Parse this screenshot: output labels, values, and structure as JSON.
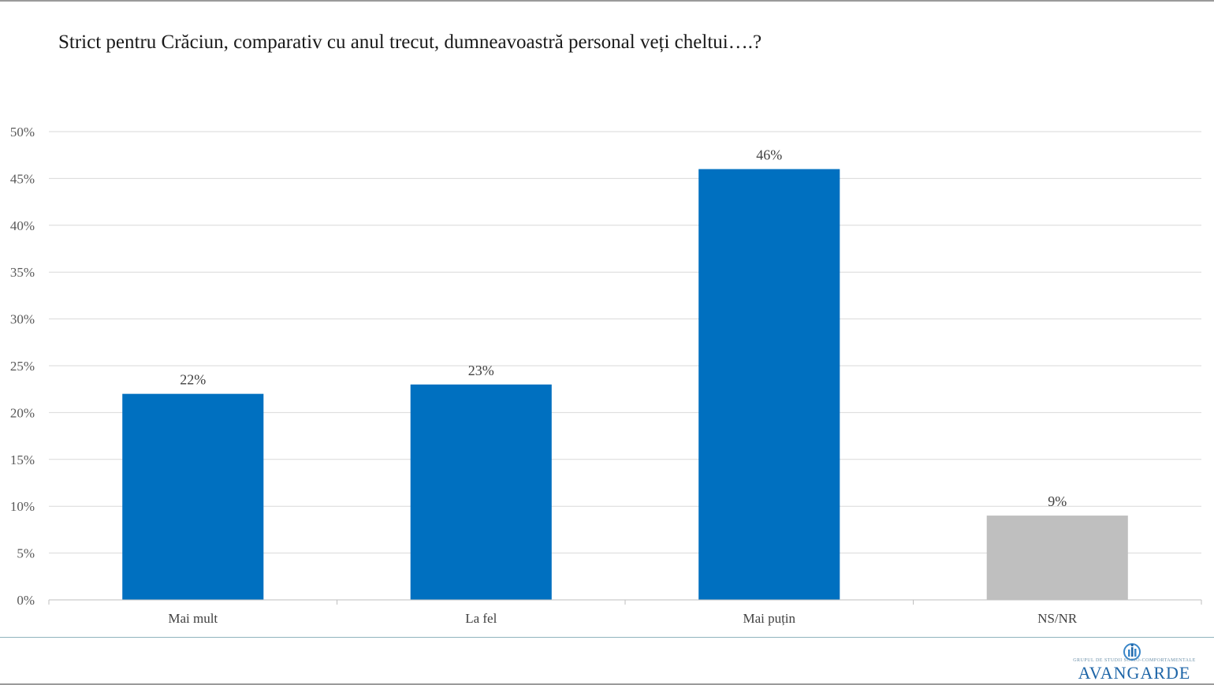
{
  "title": "Strict pentru Crăciun, comparativ cu anul trecut, dumneavoastră personal veți cheltui….?",
  "chart_data": {
    "type": "bar",
    "title": "Strict pentru Crăciun, comparativ cu anul trecut, dumneavoastră personal veți cheltui….?",
    "categories": [
      "Mai mult",
      "La fel",
      "Mai puțin",
      "NS/NR"
    ],
    "values": [
      22,
      23,
      46,
      9
    ],
    "value_labels": [
      "22%",
      "23%",
      "46%",
      "9%"
    ],
    "bar_colors": [
      "#0070c0",
      "#0070c0",
      "#0070c0",
      "#bfbfbf"
    ],
    "ylim": [
      0,
      50
    ],
    "yticks": [
      0,
      5,
      10,
      15,
      20,
      25,
      30,
      35,
      40,
      45,
      50
    ],
    "ytick_labels": [
      "0%",
      "5%",
      "10%",
      "15%",
      "20%",
      "25%",
      "30%",
      "35%",
      "40%",
      "45%",
      "50%"
    ],
    "xlabel": "",
    "ylabel": "",
    "grid": true,
    "legend": false
  },
  "logo": {
    "name": "AVANGARDE",
    "tagline": "GRUPUL DE STUDII SOCIO-COMPORTAMENTALE"
  }
}
